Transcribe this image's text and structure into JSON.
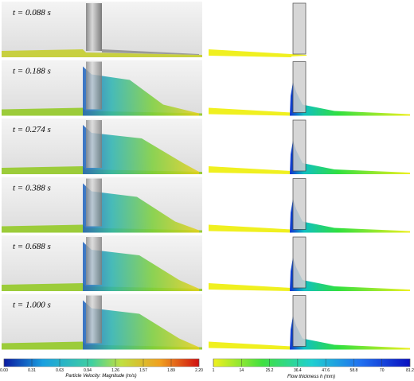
{
  "panels": {
    "times": [
      "t = 0.088 s",
      "t = 0.188 s",
      "t = 0.274 s",
      "t = 0.388 s",
      "t = 0.688 s",
      "t = 1.000 s"
    ]
  },
  "left_colorbar": {
    "ticks": [
      "0.00",
      "0.31",
      "0.63",
      "0.94",
      "1.26",
      "1.57",
      "1.89",
      "2.20"
    ],
    "label": "Particle Velocity: Magnitude (m/s)"
  },
  "right_colorbar": {
    "ticks": [
      "1",
      "14",
      "25.2",
      "36.4",
      "47.6",
      "58.8",
      "70",
      "81.2"
    ],
    "label": "Flow thickness h (mm)"
  }
}
